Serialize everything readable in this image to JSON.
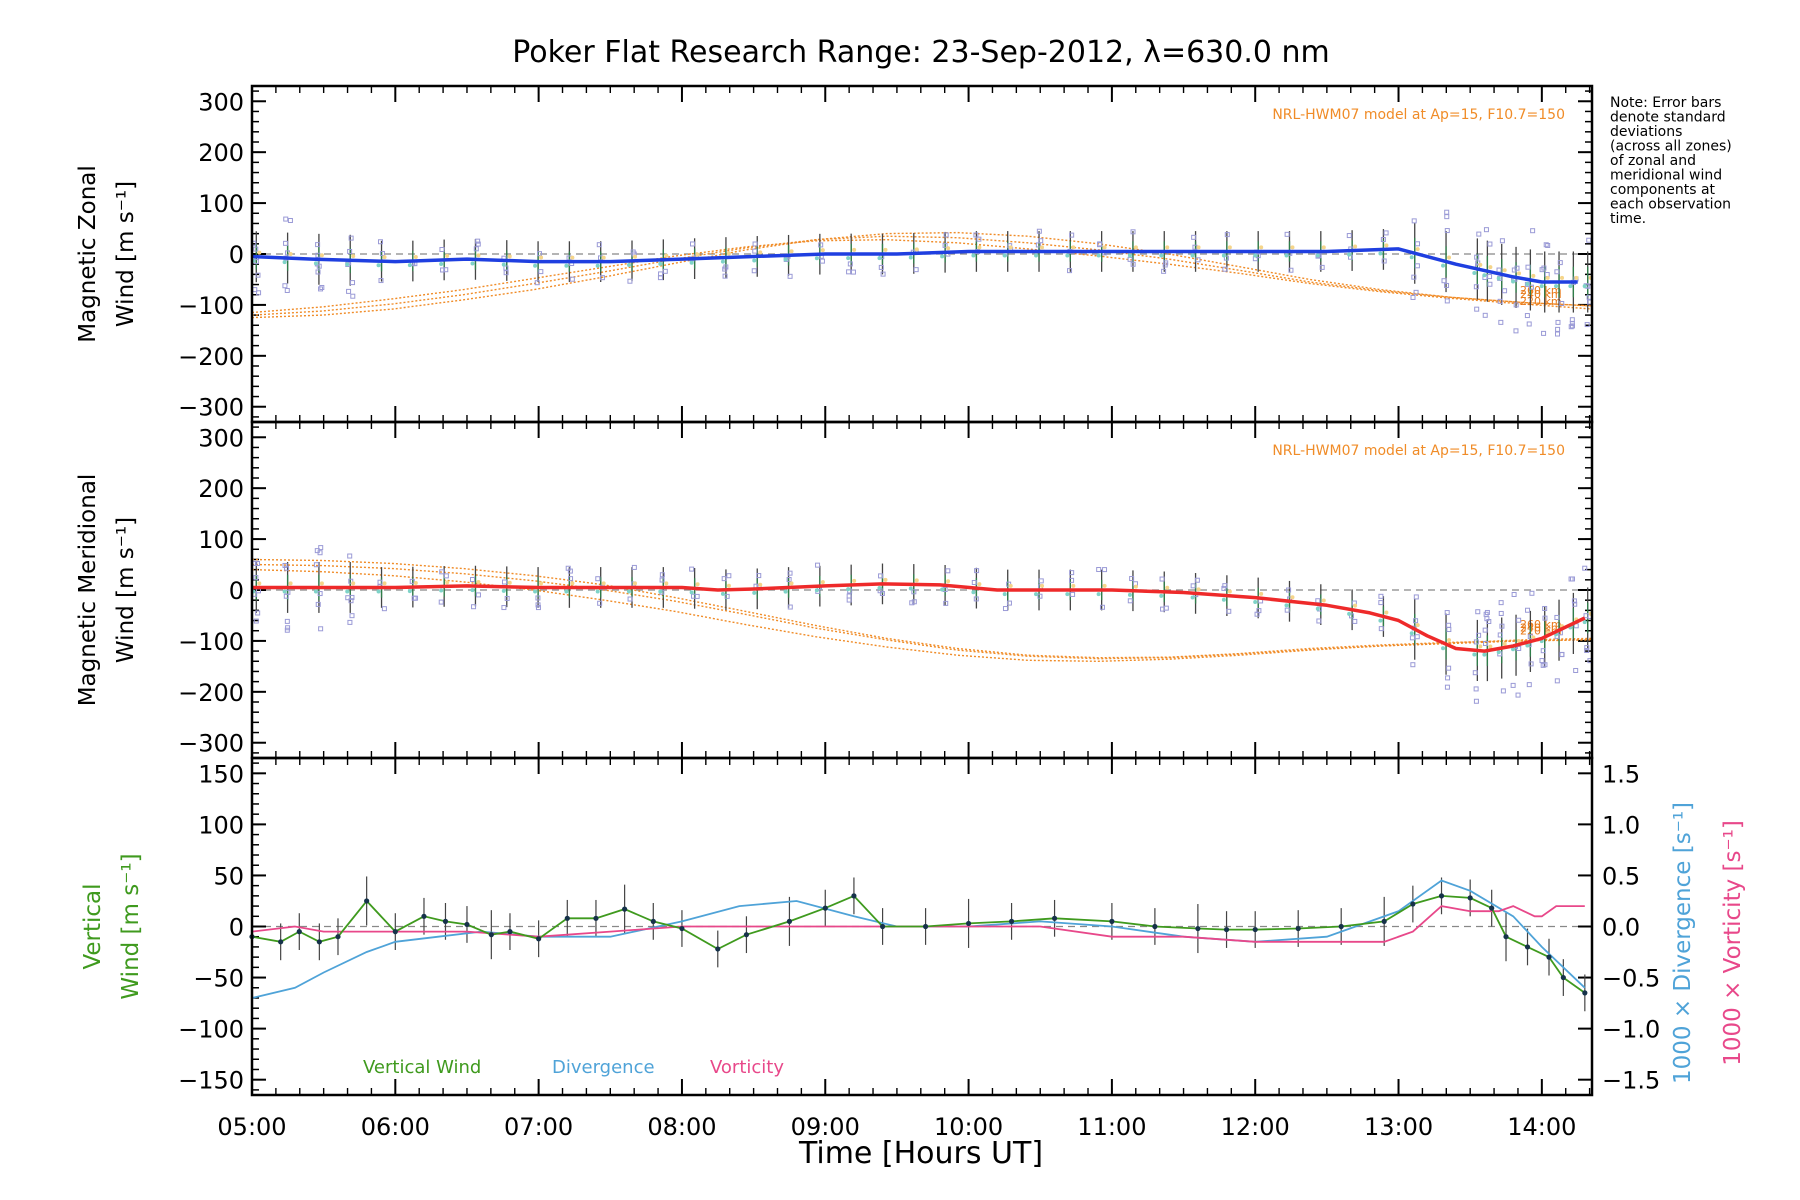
{
  "title": "Poker Flat Research Range: 23-Sep-2012, λ=630.0 nm",
  "note_lines": [
    "Note: Error bars",
    "denote standard",
    "deviations",
    "(across all zones)",
    "of zonal and",
    "meridional wind",
    "components at",
    "each observation",
    "time."
  ],
  "model_label": "NRL-HWM07 model at Ap=15, F10.7=150",
  "alt_labels": [
    "260 km",
    "240 km",
    "220 km"
  ],
  "colors": {
    "zonal": "#1f3fe0",
    "meridional": "#ee2a2a",
    "model": "#f08c28",
    "scatter": "#9a9ad6",
    "vertical": "#3f9a1e",
    "divergence": "#4fa3d8",
    "vorticity": "#e8488a",
    "errbar": "#444444"
  },
  "chart_data": [
    {
      "type": "line",
      "panel": "zonal",
      "ylabel_lines": [
        "Magnetic Zonal",
        "Wind [m s⁻¹]"
      ],
      "ylim": [
        -330,
        330
      ],
      "yticks": [
        "300",
        "200",
        "100",
        "0",
        "−100",
        "−200",
        "−300"
      ],
      "series": [
        {
          "x": [
            5.0,
            5.42,
            6.0,
            6.5,
            7.0,
            7.5,
            8.0,
            8.5,
            9.0,
            9.5,
            10.0,
            10.5,
            11.0,
            11.5,
            12.0,
            12.5,
            13.0,
            13.4,
            13.8,
            14.0,
            14.25
          ],
          "values": [
            -5,
            -10,
            -15,
            -10,
            -15,
            -15,
            -10,
            -5,
            0,
            0,
            5,
            5,
            5,
            5,
            5,
            5,
            10,
            -20,
            -45,
            -55,
            -55
          ]
        }
      ],
      "model": [
        [
          -125,
          -120,
          -108,
          -90,
          -70,
          -45,
          -18,
          8,
          28,
          40,
          42,
          35,
          20,
          0,
          -25,
          -50,
          -70,
          -85,
          -95,
          -102
        ],
        [
          -120,
          -112,
          -98,
          -80,
          -58,
          -35,
          -10,
          12,
          28,
          35,
          32,
          22,
          8,
          -10,
          -32,
          -55,
          -72,
          -85,
          -95,
          -102
        ],
        [
          -115,
          -104,
          -88,
          -70,
          -48,
          -26,
          -4,
          14,
          26,
          28,
          22,
          10,
          -4,
          -20,
          -38,
          -58,
          -74,
          -87,
          -98,
          -108
        ]
      ]
    },
    {
      "type": "line",
      "panel": "meridional",
      "ylabel_lines": [
        "Magnetic Meridional",
        "Wind [m s⁻¹]"
      ],
      "ylim": [
        -330,
        330
      ],
      "yticks": [
        "300",
        "200",
        "100",
        "0",
        "−100",
        "−200",
        "−300"
      ],
      "series": [
        {
          "x": [
            5.0,
            5.5,
            6.0,
            6.5,
            7.0,
            7.5,
            8.0,
            8.25,
            8.5,
            9.0,
            9.4,
            9.8,
            10.2,
            10.6,
            11.0,
            11.5,
            12.0,
            12.5,
            12.8,
            13.0,
            13.2,
            13.4,
            13.6,
            13.8,
            14.0,
            14.3
          ],
          "values": [
            5,
            5,
            5,
            8,
            5,
            5,
            5,
            0,
            2,
            8,
            12,
            10,
            0,
            0,
            0,
            -5,
            -15,
            -30,
            -45,
            -60,
            -90,
            -115,
            -120,
            -110,
            -95,
            -55
          ]
        }
      ],
      "model": [
        [
          60,
          58,
          52,
          42,
          28,
          10,
          -15,
          -42,
          -70,
          -95,
          -115,
          -128,
          -133,
          -132,
          -125,
          -115,
          -108,
          -103,
          -100,
          -98
        ],
        [
          50,
          48,
          42,
          32,
          18,
          0,
          -22,
          -48,
          -75,
          -98,
          -118,
          -130,
          -135,
          -133,
          -126,
          -117,
          -110,
          -105,
          -100,
          -97
        ],
        [
          40,
          36,
          28,
          16,
          0,
          -20,
          -42,
          -68,
          -92,
          -112,
          -128,
          -138,
          -140,
          -136,
          -128,
          -118,
          -110,
          -104,
          -98,
          -95
        ]
      ]
    },
    {
      "type": "line",
      "panel": "vertical",
      "ylabel_lines": [
        "Vertical",
        "Wind [m s⁻¹]"
      ],
      "ylim": [
        -165,
        165
      ],
      "yticks": [
        "150",
        "100",
        "50",
        "0",
        "−50",
        "−100",
        "−150"
      ],
      "right_axis_labels": [
        "1000 × Divergence [s⁻¹]",
        "1000 × Vorticity [s⁻¹]"
      ],
      "right_ylim": [
        -1.65,
        1.65
      ],
      "right_yticks": [
        "1.5",
        "1.0",
        "0.5",
        "0.0",
        "−0.5",
        "−1.0",
        "−1.5"
      ],
      "legend": [
        "Vertical Wind",
        "Divergence",
        "Vorticity"
      ],
      "series": [
        {
          "name": "Vertical Wind",
          "x": [
            5.0,
            5.2,
            5.33,
            5.47,
            5.6,
            5.8,
            6.0,
            6.2,
            6.35,
            6.5,
            6.67,
            6.8,
            7.0,
            7.2,
            7.4,
            7.6,
            7.8,
            8.0,
            8.25,
            8.45,
            8.75,
            9.0,
            9.2,
            9.4,
            9.7,
            10.0,
            10.3,
            10.6,
            11.0,
            11.3,
            11.6,
            11.8,
            12.0,
            12.3,
            12.6,
            12.9,
            13.1,
            13.3,
            13.5,
            13.65,
            13.75,
            13.9,
            14.05,
            14.15,
            14.3
          ],
          "values": [
            -10,
            -15,
            -5,
            -15,
            -10,
            25,
            -5,
            10,
            5,
            2,
            -8,
            -5,
            -12,
            8,
            8,
            17,
            5,
            -2,
            -22,
            -8,
            5,
            18,
            30,
            0,
            0,
            3,
            5,
            8,
            5,
            0,
            -2,
            -3,
            -3,
            -2,
            0,
            5,
            22,
            30,
            28,
            18,
            -10,
            -20,
            -30,
            -50,
            -65
          ]
        },
        {
          "name": "Divergence",
          "x": [
            5.0,
            5.3,
            5.5,
            5.8,
            6.0,
            6.3,
            6.6,
            7.0,
            7.5,
            8.0,
            8.4,
            8.8,
            9.2,
            9.5,
            10.0,
            10.5,
            11.0,
            11.5,
            12.0,
            12.5,
            13.0,
            13.3,
            13.5,
            13.8,
            14.0,
            14.3
          ],
          "values": [
            -0.7,
            -0.6,
            -0.45,
            -0.25,
            -0.15,
            -0.1,
            -0.05,
            -0.1,
            -0.1,
            0.05,
            0.2,
            0.25,
            0.1,
            0.0,
            0.0,
            0.05,
            0.0,
            -0.1,
            -0.15,
            -0.1,
            0.15,
            0.45,
            0.35,
            0.1,
            -0.2,
            -0.6
          ]
        },
        {
          "name": "Vorticity",
          "x": [
            5.0,
            5.3,
            5.5,
            5.8,
            6.0,
            6.5,
            7.0,
            7.5,
            8.0,
            8.5,
            9.0,
            9.5,
            10.0,
            10.5,
            11.0,
            11.5,
            12.0,
            12.5,
            12.9,
            13.1,
            13.3,
            13.5,
            13.7,
            13.8,
            13.95,
            14.0,
            14.1,
            14.2,
            14.3
          ],
          "values": [
            -0.05,
            0.0,
            -0.05,
            -0.05,
            -0.05,
            -0.05,
            -0.1,
            -0.05,
            0.0,
            0.0,
            0.0,
            0.0,
            0.0,
            0.0,
            -0.1,
            -0.1,
            -0.15,
            -0.15,
            -0.15,
            -0.05,
            0.2,
            0.15,
            0.15,
            0.2,
            0.1,
            0.1,
            0.2,
            0.2,
            0.2
          ]
        }
      ]
    }
  ],
  "xaxis": {
    "label": "Time [Hours UT]",
    "xlim": [
      5.0,
      14.35
    ],
    "ticks": [
      {
        "v": 5,
        "t": "05:00"
      },
      {
        "v": 6,
        "t": "06:00"
      },
      {
        "v": 7,
        "t": "07:00"
      },
      {
        "v": 8,
        "t": "08:00"
      },
      {
        "v": 9,
        "t": "09:00"
      },
      {
        "v": 10,
        "t": "10:00"
      },
      {
        "v": 11,
        "t": "11:00"
      },
      {
        "v": 12,
        "t": "12:00"
      },
      {
        "v": 13,
        "t": "13:00"
      },
      {
        "v": 14,
        "t": "14:00"
      }
    ]
  }
}
